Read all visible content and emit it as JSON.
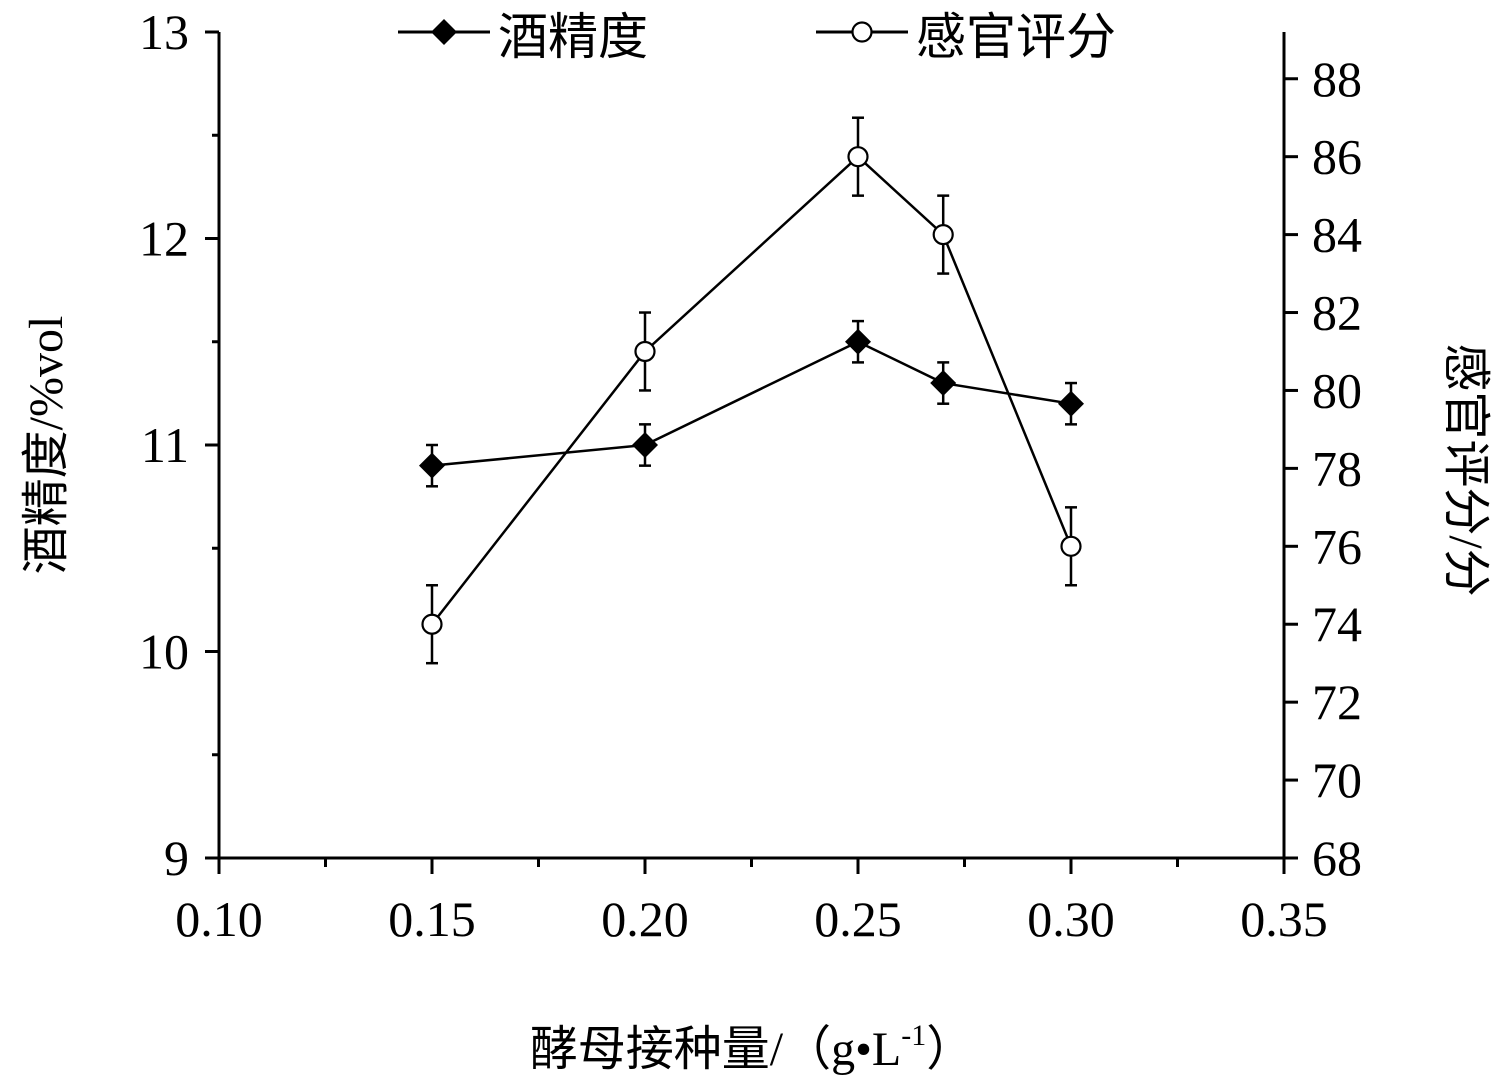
{
  "chart_data": {
    "type": "line",
    "xlabel": "酵母接种量/（g•L-1）",
    "xlabel_parts": {
      "main": "酵母接种量/（g•L",
      "sup": "-1",
      "close": "）"
    },
    "ylabel_left": "酒精度/%vol",
    "ylabel_right": "感官评分/分",
    "xlim": [
      0.1,
      0.35
    ],
    "ylim_left": [
      9,
      13
    ],
    "ylim_right": [
      68,
      89.2
    ],
    "x_ticks": [
      "0.10",
      "0.15",
      "0.20",
      "0.25",
      "0.30",
      "0.35"
    ],
    "y_left_ticks": [
      "9",
      "10",
      "11",
      "12",
      "13"
    ],
    "y_right_ticks": [
      "68",
      "70",
      "72",
      "74",
      "76",
      "78",
      "80",
      "82",
      "84",
      "86",
      "88"
    ],
    "legend_position": "top-center",
    "series": [
      {
        "name": "酒精度",
        "axis": "left",
        "marker": "filled-diamond",
        "x": [
          0.15,
          0.2,
          0.25,
          0.27,
          0.3
        ],
        "values": [
          10.9,
          11.0,
          11.5,
          11.3,
          11.2
        ],
        "errors": [
          0.1,
          0.1,
          0.1,
          0.1,
          0.1
        ]
      },
      {
        "name": "感官评分",
        "axis": "right",
        "marker": "open-circle",
        "x": [
          0.15,
          0.2,
          0.25,
          0.27,
          0.3
        ],
        "values": [
          74,
          81,
          86,
          84,
          76
        ],
        "errors": [
          1,
          1,
          1,
          1,
          1
        ]
      }
    ]
  }
}
